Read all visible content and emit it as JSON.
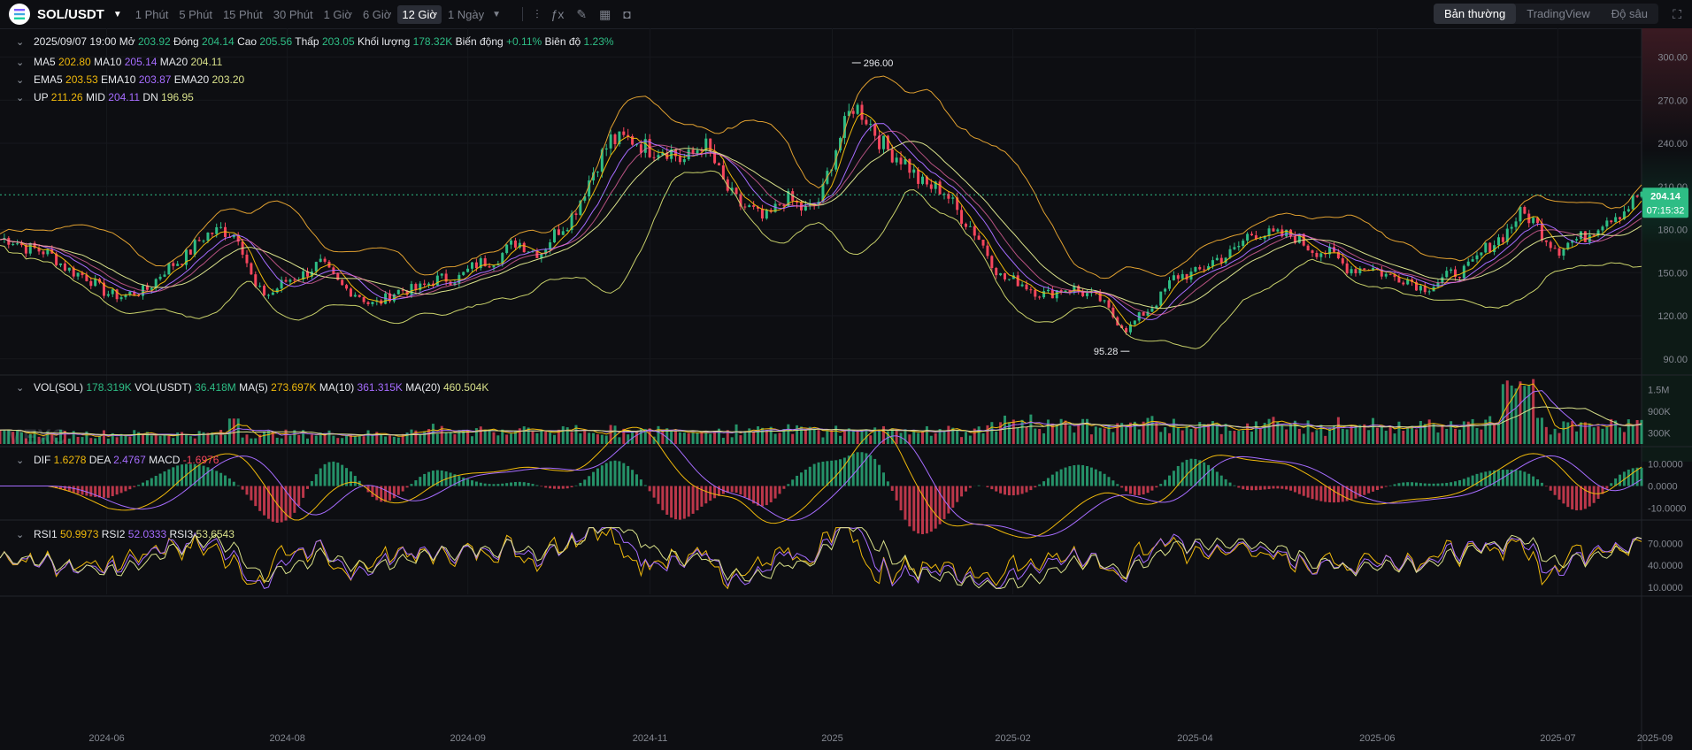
{
  "header": {
    "symbol": "SOL/USDT",
    "timeframes": [
      "1 Phút",
      "5 Phút",
      "15 Phút",
      "30 Phút",
      "1 Giờ",
      "6 Giờ",
      "12 Giờ",
      "1 Ngày"
    ],
    "active_timeframe": "12 Giờ",
    "modes": [
      "Bản thường",
      "TradingView",
      "Độ sâu"
    ],
    "active_mode": "Bản thường"
  },
  "legend": {
    "ohlc": [
      {
        "k": "",
        "v": "2025/09/07 19:00",
        "c": "#e6e8ec"
      },
      {
        "k": "Mở",
        "v": "203.92",
        "c": "#2ebd85"
      },
      {
        "k": "Đóng",
        "v": "204.14",
        "c": "#2ebd85"
      },
      {
        "k": "Cao",
        "v": "205.56",
        "c": "#2ebd85"
      },
      {
        "k": "Thấp",
        "v": "203.05",
        "c": "#2ebd85"
      },
      {
        "k": "Khối lượng",
        "v": "178.32K",
        "c": "#2ebd85"
      },
      {
        "k": "Biến động",
        "v": "+0.11%",
        "c": "#2ebd85"
      },
      {
        "k": "Biên độ",
        "v": "1.23%",
        "c": "#2ebd85"
      }
    ],
    "ma": [
      {
        "k": "MA5",
        "v": "202.80",
        "c": "#f0b90b"
      },
      {
        "k": "MA10",
        "v": "205.14",
        "c": "#a66cff"
      },
      {
        "k": "MA20",
        "v": "204.11",
        "c": "#d8e08a"
      }
    ],
    "ema": [
      {
        "k": "EMA5",
        "v": "203.53",
        "c": "#f0b90b"
      },
      {
        "k": "EMA10",
        "v": "203.87",
        "c": "#a66cff"
      },
      {
        "k": "EMA20",
        "v": "203.20",
        "c": "#d8e08a"
      }
    ],
    "boll": [
      {
        "k": "UP",
        "v": "211.26",
        "c": "#f0b90b"
      },
      {
        "k": "MID",
        "v": "204.11",
        "c": "#a66cff"
      },
      {
        "k": "DN",
        "v": "196.95",
        "c": "#d8e08a"
      }
    ],
    "vol": [
      {
        "k": "VOL(SOL)",
        "v": "178.319K",
        "c": "#2ebd85"
      },
      {
        "k": "VOL(USDT)",
        "v": "36.418M",
        "c": "#2ebd85"
      },
      {
        "k": "MA(5)",
        "v": "273.697K",
        "c": "#f0b90b"
      },
      {
        "k": "MA(10)",
        "v": "361.315K",
        "c": "#a66cff"
      },
      {
        "k": "MA(20)",
        "v": "460.504K",
        "c": "#d8e08a"
      }
    ],
    "macd": [
      {
        "k": "DIF",
        "v": "1.6278",
        "c": "#f0b90b"
      },
      {
        "k": "DEA",
        "v": "2.4767",
        "c": "#a66cff"
      },
      {
        "k": "MACD",
        "v": "-1.6976",
        "c": "#f6465d"
      }
    ],
    "rsi": [
      {
        "k": "RSI1",
        "v": "50.9973",
        "c": "#f0b90b"
      },
      {
        "k": "RSI2",
        "v": "52.0333",
        "c": "#a66cff"
      },
      {
        "k": "RSI3",
        "v": "53.6543",
        "c": "#d8e08a"
      }
    ]
  },
  "watermark": "MEXC",
  "chart_data": {
    "type": "line",
    "title": "",
    "price_axis": {
      "ticks": [
        "300.00",
        "270.00",
        "240.00",
        "210.00",
        "180.00",
        "150.00",
        "120.00",
        "90.00"
      ],
      "range": [
        80,
        320
      ]
    },
    "vol_axis": {
      "ticks": [
        "1.5M",
        "900K",
        "300K"
      ],
      "range": [
        0,
        1900000
      ]
    },
    "macd_axis": {
      "ticks": [
        "10.0000",
        "0.0000",
        "-10.0000"
      ],
      "range": [
        -15,
        17
      ]
    },
    "rsi_axis": {
      "ticks": [
        "70.0000",
        "40.0000",
        "10.0000"
      ],
      "range": [
        0,
        100
      ]
    },
    "x_ticks": [
      "2024-06",
      "2024-08",
      "2024-09",
      "2024-11",
      "2025",
      "2025-02",
      "2025-04",
      "2025-06",
      "2025-07",
      "2025-09"
    ],
    "x_tick_pos": [
      0.065,
      0.175,
      0.285,
      0.396,
      0.507,
      0.617,
      0.728,
      0.839,
      0.949,
      1.06
    ],
    "current_price": "204.14",
    "countdown": "07:15:32",
    "high_marker": {
      "label": "296.00",
      "value": 296,
      "t": 0.519
    },
    "low_marker": {
      "label": "95.28",
      "value": 95.28,
      "t": 0.687
    },
    "price_series": [
      [
        0,
        173
      ],
      [
        0.02,
        168
      ],
      [
        0.04,
        155
      ],
      [
        0.06,
        140
      ],
      [
        0.075,
        132
      ],
      [
        0.09,
        140
      ],
      [
        0.105,
        155
      ],
      [
        0.12,
        170
      ],
      [
        0.135,
        182
      ],
      [
        0.145,
        175
      ],
      [
        0.155,
        140
      ],
      [
        0.165,
        135
      ],
      [
        0.18,
        148
      ],
      [
        0.195,
        155
      ],
      [
        0.21,
        140
      ],
      [
        0.225,
        128
      ],
      [
        0.24,
        135
      ],
      [
        0.26,
        142
      ],
      [
        0.28,
        148
      ],
      [
        0.3,
        160
      ],
      [
        0.315,
        170
      ],
      [
        0.33,
        165
      ],
      [
        0.345,
        185
      ],
      [
        0.36,
        215
      ],
      [
        0.372,
        245
      ],
      [
        0.385,
        240
      ],
      [
        0.4,
        238
      ],
      [
        0.415,
        228
      ],
      [
        0.428,
        240
      ],
      [
        0.44,
        215
      ],
      [
        0.452,
        195
      ],
      [
        0.465,
        188
      ],
      [
        0.478,
        200
      ],
      [
        0.49,
        195
      ],
      [
        0.5,
        200
      ],
      [
        0.51,
        240
      ],
      [
        0.519,
        268
      ],
      [
        0.53,
        252
      ],
      [
        0.545,
        232
      ],
      [
        0.56,
        215
      ],
      [
        0.575,
        205
      ],
      [
        0.59,
        185
      ],
      [
        0.6,
        165
      ],
      [
        0.61,
        148
      ],
      [
        0.625,
        140
      ],
      [
        0.64,
        135
      ],
      [
        0.655,
        140
      ],
      [
        0.67,
        130
      ],
      [
        0.687,
        110
      ],
      [
        0.7,
        125
      ],
      [
        0.715,
        145
      ],
      [
        0.73,
        152
      ],
      [
        0.745,
        160
      ],
      [
        0.76,
        175
      ],
      [
        0.775,
        178
      ],
      [
        0.79,
        173
      ],
      [
        0.805,
        165
      ],
      [
        0.82,
        155
      ],
      [
        0.835,
        152
      ],
      [
        0.85,
        148
      ],
      [
        0.865,
        140
      ],
      [
        0.88,
        145
      ],
      [
        0.895,
        155
      ],
      [
        0.91,
        170
      ],
      [
        0.925,
        190
      ],
      [
        0.935,
        185
      ],
      [
        0.95,
        165
      ],
      [
        0.962,
        175
      ],
      [
        0.975,
        183
      ],
      [
        0.985,
        192
      ],
      [
        0.995,
        200
      ],
      [
        1.0,
        204
      ]
    ]
  }
}
